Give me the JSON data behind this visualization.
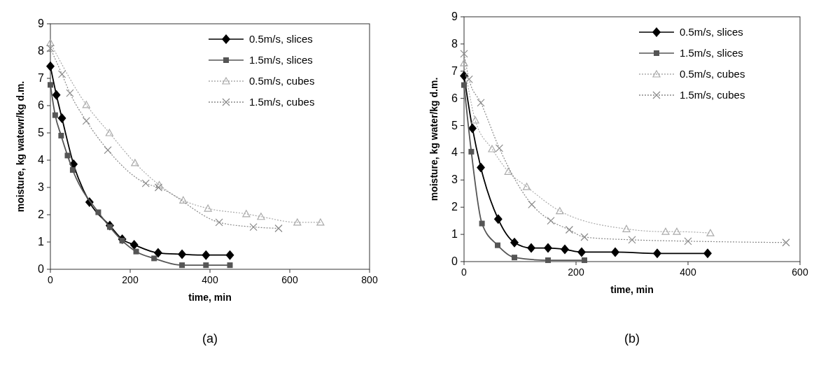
{
  "chart_data": [
    {
      "type": "line",
      "xlabel": "time, min",
      "ylabel": "moisture, kg watewr/kg d.m.",
      "annotations": [
        "(a)"
      ],
      "xlim": [
        0,
        800
      ],
      "xticks": [
        0,
        200,
        400,
        600,
        800
      ],
      "ylim": [
        0,
        9
      ],
      "yticks": [
        0,
        1,
        2,
        3,
        4,
        5,
        6,
        7,
        8,
        9
      ],
      "grid": false,
      "legend": "top right",
      "series": [
        {
          "name": "0.5m/s, slices",
          "color": "#000000",
          "marker": "diamond",
          "line_style": "solid",
          "x": [
            0,
            15,
            29,
            58,
            98,
            149,
            180,
            210,
            270,
            330,
            390,
            450
          ],
          "values": [
            7.44,
            6.39,
            5.54,
            3.85,
            2.46,
            1.6,
            1.1,
            0.9,
            0.6,
            0.55,
            0.52,
            0.52
          ]
        },
        {
          "name": "1.5m/s, slices",
          "color": "#555555",
          "marker": "square",
          "line_style": "solid",
          "x": [
            0,
            12,
            27,
            43,
            56,
            120,
            149,
            180,
            215,
            260,
            330,
            390,
            450
          ],
          "values": [
            6.76,
            5.65,
            4.9,
            4.17,
            3.64,
            2.09,
            1.55,
            1.05,
            0.65,
            0.4,
            0.15,
            0.15,
            0.15
          ]
        },
        {
          "name": "0.5m/s, cubes",
          "color": "#aaaaaa",
          "marker": "triangle",
          "line_style": "dotted",
          "x": [
            0,
            90,
            148,
            212,
            273,
            333,
            395,
            491,
            528,
            619,
            677
          ],
          "values": [
            8.3,
            6.03,
            5.0,
            3.9,
            3.09,
            2.53,
            2.23,
            2.03,
            1.93,
            1.72,
            1.72
          ]
        },
        {
          "name": "1.5m/s, cubes",
          "color": "#888888",
          "marker": "cross",
          "line_style": "dotted",
          "x": [
            0,
            29,
            49,
            90,
            144,
            239,
            271,
            423,
            509,
            572
          ],
          "values": [
            8.1,
            7.15,
            6.46,
            5.44,
            4.37,
            3.15,
            3.0,
            1.72,
            1.55,
            1.5
          ]
        }
      ]
    },
    {
      "type": "line",
      "xlabel": "time, min",
      "ylabel": "moisture, kg water/kg d.m.",
      "annotations": [
        "(b)"
      ],
      "xlim": [
        0,
        600
      ],
      "xticks": [
        0,
        200,
        400,
        600
      ],
      "ylim": [
        0,
        9
      ],
      "yticks": [
        0,
        1,
        2,
        3,
        4,
        5,
        6,
        7,
        8,
        9
      ],
      "grid": false,
      "legend": "top right",
      "series": [
        {
          "name": "0.5m/s, slices",
          "color": "#000000",
          "marker": "diamond",
          "line_style": "solid",
          "x": [
            0,
            15,
            30,
            61,
            90,
            120,
            150,
            180,
            210,
            270,
            345,
            435
          ],
          "values": [
            6.83,
            4.9,
            3.46,
            1.56,
            0.7,
            0.5,
            0.5,
            0.45,
            0.35,
            0.35,
            0.3,
            0.3
          ]
        },
        {
          "name": "1.5m/s, slices",
          "color": "#555555",
          "marker": "square",
          "line_style": "solid",
          "x": [
            0,
            13,
            32,
            60,
            90,
            150,
            215
          ],
          "values": [
            6.49,
            4.04,
            1.4,
            0.6,
            0.15,
            0.05,
            0.05
          ]
        },
        {
          "name": "0.5m/s, cubes",
          "color": "#aaaaaa",
          "marker": "triangle",
          "line_style": "dotted",
          "x": [
            0,
            20,
            50,
            79,
            112,
            171,
            290,
            360,
            380,
            440
          ],
          "values": [
            7.3,
            5.2,
            4.14,
            3.31,
            2.75,
            1.86,
            1.2,
            1.1,
            1.1,
            1.05
          ]
        },
        {
          "name": "1.5m/s, cubes",
          "color": "#888888",
          "marker": "cross",
          "line_style": "dotted",
          "x": [
            0,
            9,
            30,
            63,
            121,
            155,
            188,
            215,
            300,
            400,
            575
          ],
          "values": [
            7.64,
            6.7,
            5.84,
            4.17,
            2.1,
            1.5,
            1.17,
            0.9,
            0.8,
            0.75,
            0.7
          ]
        }
      ]
    }
  ]
}
